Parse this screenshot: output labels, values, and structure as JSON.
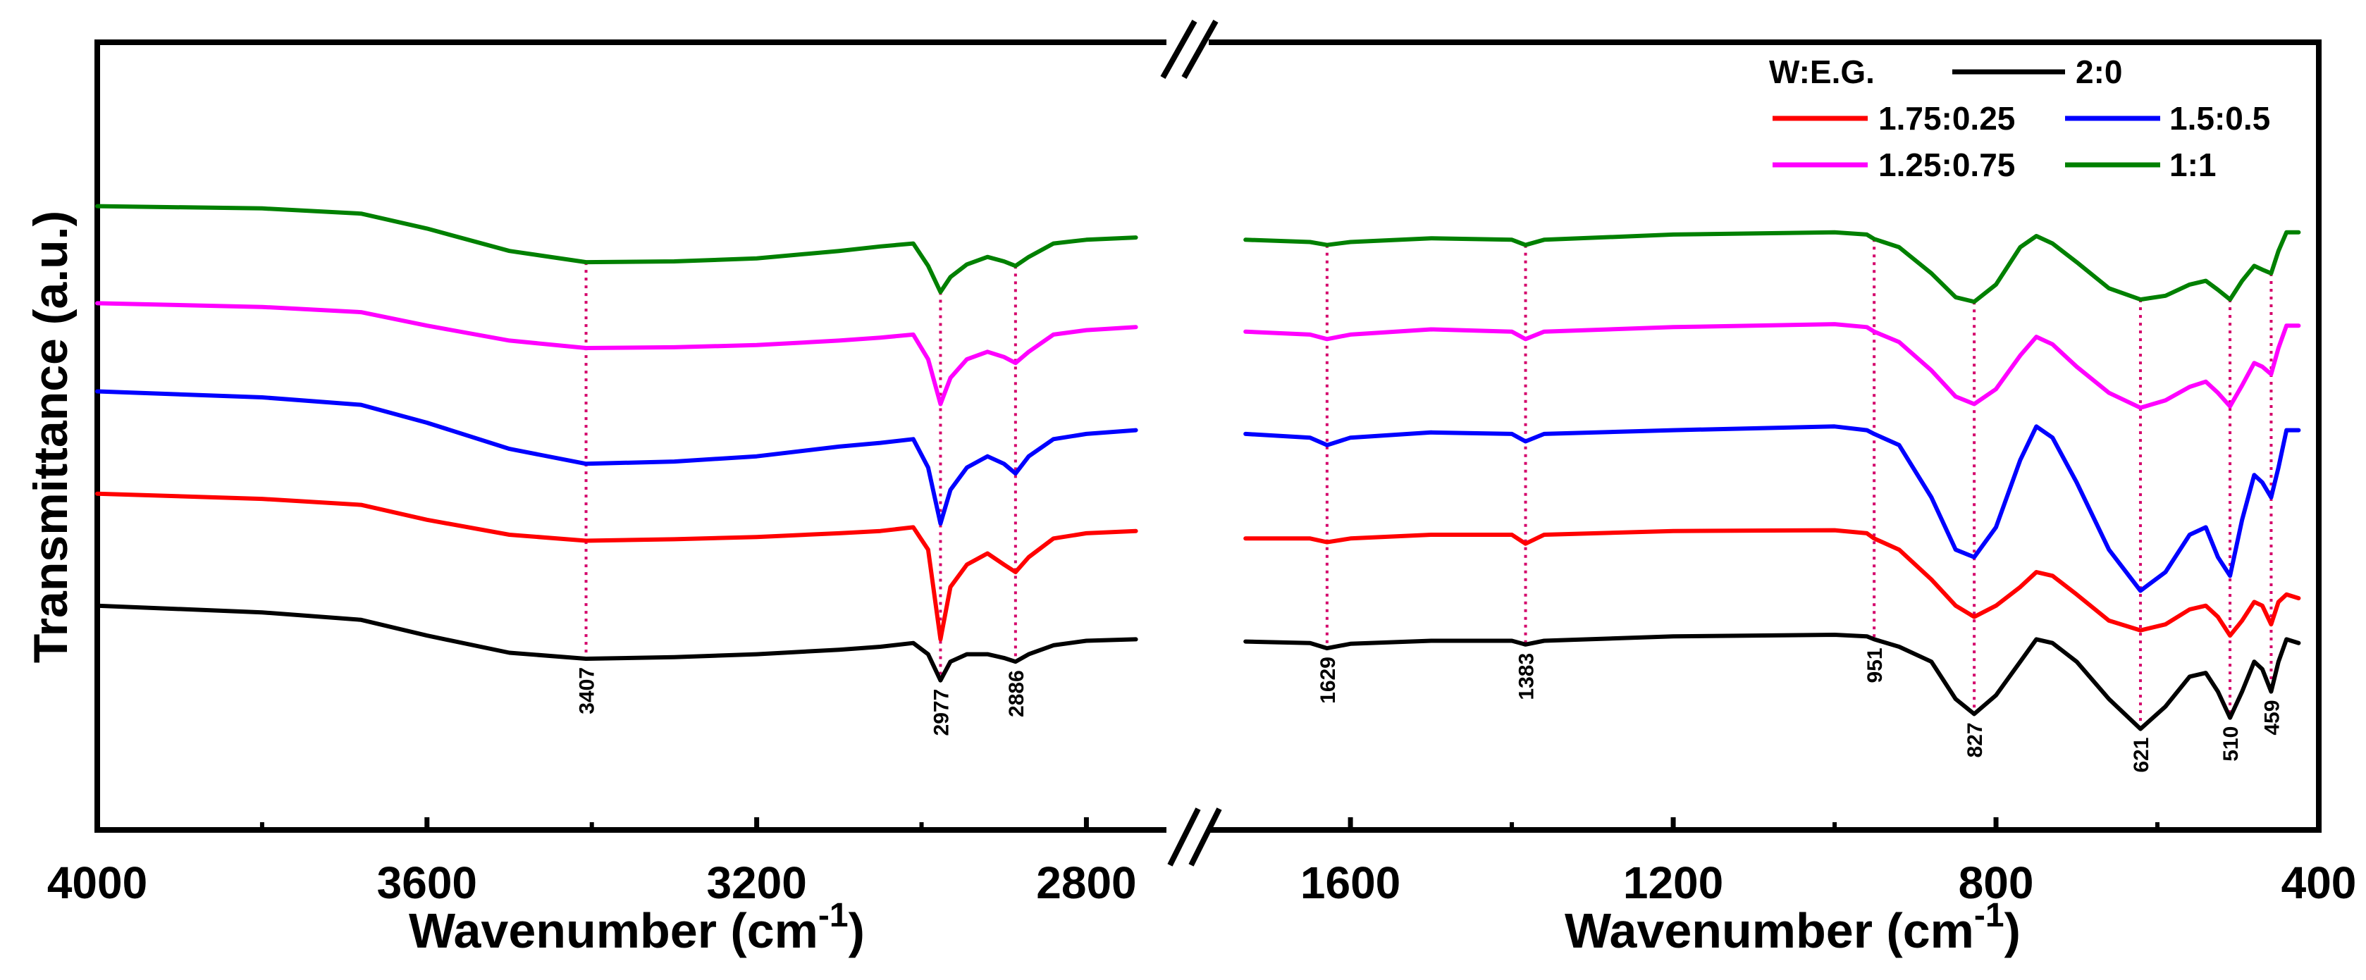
{
  "chart_data": {
    "type": "line",
    "ylabel": "Transmittance (a.u.)",
    "xlabel": "Wavenumber (cm",
    "xlabel_sup": "-1",
    "xlabel_close": ")",
    "x_axis_break": true,
    "left_panel": {
      "xlim": [
        4000,
        2720
      ],
      "ticks": [
        4000,
        3600,
        3200,
        2800
      ]
    },
    "right_panel": {
      "xlim": [
        1780,
        400
      ],
      "ticks": [
        1600,
        1200,
        800,
        400
      ]
    },
    "ylim": [
      0,
      1
    ],
    "legend": {
      "title": "W:E.G.",
      "placement": "top-right",
      "entries": [
        "2:0",
        "1.75:0.25",
        "1.5:0.5",
        "1.25:0.75",
        "1:1"
      ]
    },
    "peak_labels": [
      "3407",
      "2977",
      "2886",
      "1629",
      "1383",
      "951",
      "827",
      "621",
      "510",
      "459"
    ],
    "peak_positions": [
      3407,
      2977,
      2886,
      1629,
      1383,
      951,
      827,
      621,
      510,
      459
    ],
    "series": [
      {
        "name": "2:0",
        "color": "#000000",
        "left": [
          [
            4000,
            0.255
          ],
          [
            3800,
            0.246
          ],
          [
            3680,
            0.236
          ],
          [
            3600,
            0.215
          ],
          [
            3500,
            0.192
          ],
          [
            3407,
            0.184
          ],
          [
            3300,
            0.186
          ],
          [
            3200,
            0.19
          ],
          [
            3100,
            0.196
          ],
          [
            3050,
            0.2
          ],
          [
            3010,
            0.205
          ],
          [
            2992,
            0.19
          ],
          [
            2977,
            0.155
          ],
          [
            2965,
            0.18
          ],
          [
            2945,
            0.19
          ],
          [
            2920,
            0.19
          ],
          [
            2900,
            0.185
          ],
          [
            2886,
            0.18
          ],
          [
            2870,
            0.19
          ],
          [
            2840,
            0.202
          ],
          [
            2800,
            0.208
          ],
          [
            2740,
            0.21
          ]
        ],
        "right": [
          [
            1730,
            0.207
          ],
          [
            1650,
            0.205
          ],
          [
            1629,
            0.198
          ],
          [
            1600,
            0.204
          ],
          [
            1500,
            0.208
          ],
          [
            1400,
            0.208
          ],
          [
            1383,
            0.203
          ],
          [
            1360,
            0.208
          ],
          [
            1200,
            0.214
          ],
          [
            1000,
            0.216
          ],
          [
            960,
            0.214
          ],
          [
            951,
            0.21
          ],
          [
            920,
            0.2
          ],
          [
            880,
            0.18
          ],
          [
            850,
            0.13
          ],
          [
            827,
            0.11
          ],
          [
            800,
            0.135
          ],
          [
            770,
            0.18
          ],
          [
            750,
            0.21
          ],
          [
            730,
            0.205
          ],
          [
            700,
            0.18
          ],
          [
            660,
            0.13
          ],
          [
            621,
            0.09
          ],
          [
            590,
            0.12
          ],
          [
            560,
            0.16
          ],
          [
            540,
            0.165
          ],
          [
            525,
            0.14
          ],
          [
            510,
            0.105
          ],
          [
            495,
            0.14
          ],
          [
            480,
            0.18
          ],
          [
            470,
            0.17
          ],
          [
            459,
            0.14
          ],
          [
            450,
            0.18
          ],
          [
            440,
            0.21
          ],
          [
            425,
            0.205
          ]
        ]
      },
      {
        "name": "1.75:0.25",
        "color": "#ff0000",
        "left": [
          [
            4000,
            0.405
          ],
          [
            3800,
            0.398
          ],
          [
            3680,
            0.39
          ],
          [
            3600,
            0.37
          ],
          [
            3500,
            0.35
          ],
          [
            3407,
            0.342
          ],
          [
            3300,
            0.344
          ],
          [
            3200,
            0.347
          ],
          [
            3100,
            0.352
          ],
          [
            3050,
            0.355
          ],
          [
            3010,
            0.36
          ],
          [
            2992,
            0.33
          ],
          [
            2977,
            0.21
          ],
          [
            2965,
            0.28
          ],
          [
            2945,
            0.31
          ],
          [
            2920,
            0.325
          ],
          [
            2900,
            0.31
          ],
          [
            2886,
            0.3
          ],
          [
            2870,
            0.32
          ],
          [
            2840,
            0.345
          ],
          [
            2800,
            0.352
          ],
          [
            2740,
            0.355
          ]
        ],
        "right": [
          [
            1730,
            0.345
          ],
          [
            1650,
            0.345
          ],
          [
            1629,
            0.34
          ],
          [
            1600,
            0.345
          ],
          [
            1500,
            0.35
          ],
          [
            1400,
            0.35
          ],
          [
            1383,
            0.338
          ],
          [
            1360,
            0.35
          ],
          [
            1200,
            0.355
          ],
          [
            1000,
            0.356
          ],
          [
            960,
            0.352
          ],
          [
            951,
            0.345
          ],
          [
            920,
            0.33
          ],
          [
            880,
            0.29
          ],
          [
            850,
            0.255
          ],
          [
            827,
            0.24
          ],
          [
            800,
            0.255
          ],
          [
            770,
            0.28
          ],
          [
            750,
            0.3
          ],
          [
            730,
            0.295
          ],
          [
            700,
            0.27
          ],
          [
            660,
            0.235
          ],
          [
            621,
            0.222
          ],
          [
            590,
            0.23
          ],
          [
            560,
            0.25
          ],
          [
            540,
            0.255
          ],
          [
            525,
            0.24
          ],
          [
            510,
            0.215
          ],
          [
            495,
            0.235
          ],
          [
            480,
            0.26
          ],
          [
            470,
            0.255
          ],
          [
            459,
            0.23
          ],
          [
            450,
            0.26
          ],
          [
            440,
            0.27
          ],
          [
            425,
            0.265
          ]
        ]
      },
      {
        "name": "1.5:0.5",
        "color": "#0000ff",
        "left": [
          [
            4000,
            0.542
          ],
          [
            3800,
            0.534
          ],
          [
            3680,
            0.524
          ],
          [
            3600,
            0.5
          ],
          [
            3500,
            0.465
          ],
          [
            3407,
            0.445
          ],
          [
            3300,
            0.448
          ],
          [
            3200,
            0.455
          ],
          [
            3100,
            0.468
          ],
          [
            3050,
            0.473
          ],
          [
            3010,
            0.478
          ],
          [
            2992,
            0.44
          ],
          [
            2977,
            0.365
          ],
          [
            2965,
            0.41
          ],
          [
            2945,
            0.44
          ],
          [
            2920,
            0.455
          ],
          [
            2900,
            0.445
          ],
          [
            2886,
            0.432
          ],
          [
            2870,
            0.455
          ],
          [
            2840,
            0.478
          ],
          [
            2800,
            0.485
          ],
          [
            2740,
            0.49
          ]
        ],
        "right": [
          [
            1730,
            0.485
          ],
          [
            1650,
            0.48
          ],
          [
            1629,
            0.47
          ],
          [
            1600,
            0.48
          ],
          [
            1500,
            0.487
          ],
          [
            1400,
            0.485
          ],
          [
            1383,
            0.475
          ],
          [
            1360,
            0.485
          ],
          [
            1200,
            0.49
          ],
          [
            1000,
            0.495
          ],
          [
            960,
            0.49
          ],
          [
            951,
            0.485
          ],
          [
            920,
            0.47
          ],
          [
            880,
            0.4
          ],
          [
            850,
            0.33
          ],
          [
            827,
            0.32
          ],
          [
            800,
            0.36
          ],
          [
            770,
            0.45
          ],
          [
            750,
            0.495
          ],
          [
            730,
            0.48
          ],
          [
            700,
            0.42
          ],
          [
            660,
            0.33
          ],
          [
            621,
            0.275
          ],
          [
            590,
            0.3
          ],
          [
            560,
            0.35
          ],
          [
            540,
            0.36
          ],
          [
            525,
            0.32
          ],
          [
            510,
            0.295
          ],
          [
            495,
            0.37
          ],
          [
            480,
            0.43
          ],
          [
            470,
            0.42
          ],
          [
            459,
            0.4
          ],
          [
            450,
            0.44
          ],
          [
            440,
            0.49
          ],
          [
            425,
            0.49
          ]
        ]
      },
      {
        "name": "1.25:0.75",
        "color": "#ff00ff",
        "left": [
          [
            4000,
            0.66
          ],
          [
            3800,
            0.655
          ],
          [
            3680,
            0.648
          ],
          [
            3600,
            0.63
          ],
          [
            3500,
            0.61
          ],
          [
            3407,
            0.6
          ],
          [
            3300,
            0.601
          ],
          [
            3200,
            0.604
          ],
          [
            3100,
            0.61
          ],
          [
            3050,
            0.614
          ],
          [
            3010,
            0.618
          ],
          [
            2992,
            0.585
          ],
          [
            2977,
            0.525
          ],
          [
            2965,
            0.56
          ],
          [
            2945,
            0.585
          ],
          [
            2920,
            0.595
          ],
          [
            2900,
            0.588
          ],
          [
            2886,
            0.58
          ],
          [
            2870,
            0.595
          ],
          [
            2840,
            0.618
          ],
          [
            2800,
            0.624
          ],
          [
            2740,
            0.628
          ]
        ],
        "right": [
          [
            1730,
            0.622
          ],
          [
            1650,
            0.618
          ],
          [
            1629,
            0.612
          ],
          [
            1600,
            0.618
          ],
          [
            1500,
            0.625
          ],
          [
            1400,
            0.622
          ],
          [
            1383,
            0.612
          ],
          [
            1360,
            0.622
          ],
          [
            1200,
            0.628
          ],
          [
            1000,
            0.632
          ],
          [
            960,
            0.628
          ],
          [
            951,
            0.622
          ],
          [
            920,
            0.608
          ],
          [
            880,
            0.57
          ],
          [
            850,
            0.535
          ],
          [
            827,
            0.525
          ],
          [
            800,
            0.545
          ],
          [
            770,
            0.59
          ],
          [
            750,
            0.615
          ],
          [
            730,
            0.605
          ],
          [
            700,
            0.575
          ],
          [
            660,
            0.54
          ],
          [
            621,
            0.52
          ],
          [
            590,
            0.53
          ],
          [
            560,
            0.548
          ],
          [
            540,
            0.555
          ],
          [
            525,
            0.54
          ],
          [
            510,
            0.522
          ],
          [
            495,
            0.55
          ],
          [
            480,
            0.58
          ],
          [
            470,
            0.575
          ],
          [
            459,
            0.565
          ],
          [
            450,
            0.6
          ],
          [
            440,
            0.63
          ],
          [
            425,
            0.63
          ]
        ]
      },
      {
        "name": "1:1",
        "color": "#008000",
        "left": [
          [
            4000,
            0.79
          ],
          [
            3800,
            0.787
          ],
          [
            3680,
            0.78
          ],
          [
            3600,
            0.76
          ],
          [
            3500,
            0.73
          ],
          [
            3407,
            0.715
          ],
          [
            3300,
            0.716
          ],
          [
            3200,
            0.72
          ],
          [
            3100,
            0.73
          ],
          [
            3050,
            0.736
          ],
          [
            3010,
            0.74
          ],
          [
            2992,
            0.71
          ],
          [
            2977,
            0.675
          ],
          [
            2965,
            0.695
          ],
          [
            2945,
            0.712
          ],
          [
            2920,
            0.722
          ],
          [
            2900,
            0.716
          ],
          [
            2886,
            0.71
          ],
          [
            2870,
            0.722
          ],
          [
            2840,
            0.74
          ],
          [
            2800,
            0.745
          ],
          [
            2740,
            0.748
          ]
        ],
        "right": [
          [
            1730,
            0.745
          ],
          [
            1650,
            0.742
          ],
          [
            1629,
            0.738
          ],
          [
            1600,
            0.742
          ],
          [
            1500,
            0.747
          ],
          [
            1400,
            0.745
          ],
          [
            1383,
            0.738
          ],
          [
            1360,
            0.745
          ],
          [
            1200,
            0.752
          ],
          [
            1000,
            0.755
          ],
          [
            960,
            0.752
          ],
          [
            951,
            0.746
          ],
          [
            920,
            0.735
          ],
          [
            880,
            0.7
          ],
          [
            850,
            0.668
          ],
          [
            827,
            0.662
          ],
          [
            800,
            0.685
          ],
          [
            770,
            0.735
          ],
          [
            750,
            0.75
          ],
          [
            730,
            0.74
          ],
          [
            700,
            0.715
          ],
          [
            660,
            0.68
          ],
          [
            621,
            0.665
          ],
          [
            590,
            0.67
          ],
          [
            560,
            0.685
          ],
          [
            540,
            0.69
          ],
          [
            525,
            0.678
          ],
          [
            510,
            0.665
          ],
          [
            495,
            0.69
          ],
          [
            480,
            0.71
          ],
          [
            470,
            0.705
          ],
          [
            459,
            0.7
          ],
          [
            450,
            0.73
          ],
          [
            440,
            0.755
          ],
          [
            425,
            0.755
          ]
        ]
      }
    ]
  }
}
